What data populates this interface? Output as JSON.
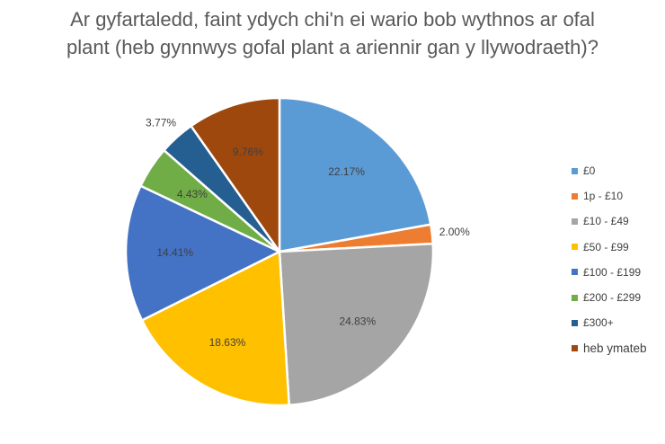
{
  "chart_data": {
    "type": "pie",
    "title_lines": [
      "Ar gyfartaledd, faint ydych chi'n ei wario bob wythnos ar ofal",
      "plant (heb gynnwys gofal plant a ariennir gan y llywodraeth)?"
    ],
    "legend_position": "right",
    "slices": [
      {
        "label": "£0",
        "value": 22.17,
        "display": "22.17%",
        "color": "#5B9BD5"
      },
      {
        "label": "1p - £10",
        "value": 2.0,
        "display": "2.00%",
        "color": "#ED7D31"
      },
      {
        "label": "£10 - £49",
        "value": 24.83,
        "display": "24.83%",
        "color": "#A5A5A5"
      },
      {
        "label": "£50 - £99",
        "value": 18.63,
        "display": "18.63%",
        "color": "#FFC000"
      },
      {
        "label": "£100 - £199",
        "value": 14.41,
        "display": "14.41%",
        "color": "#4472C4"
      },
      {
        "label": "£200 - £299",
        "value": 4.43,
        "display": "4.43%",
        "color": "#70AD47"
      },
      {
        "label": "£300+",
        "value": 3.77,
        "display": "3.77%",
        "color": "#255E91"
      },
      {
        "label": "heb ymateb",
        "value": 9.76,
        "display": "9.76%",
        "color": "#9E480E"
      }
    ]
  }
}
